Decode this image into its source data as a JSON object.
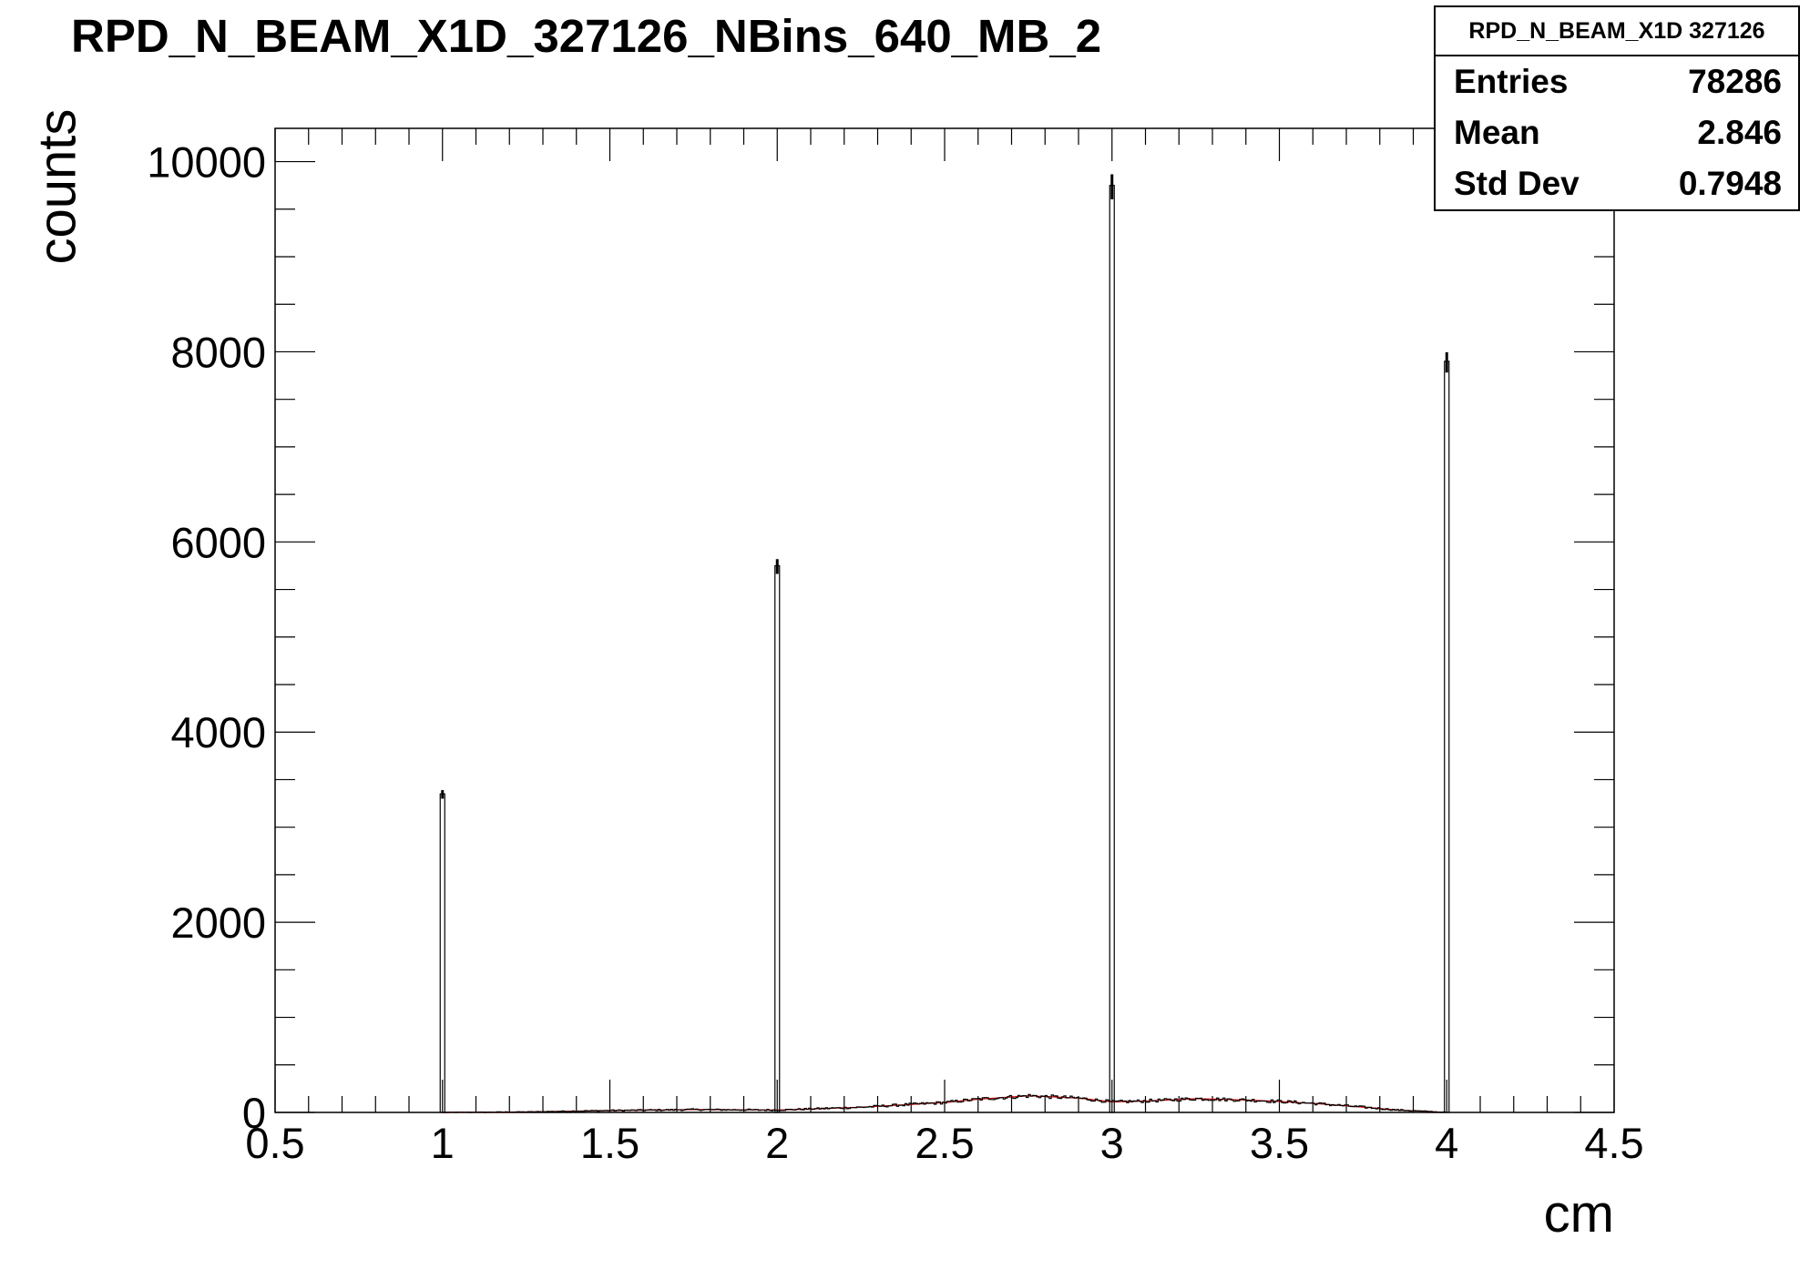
{
  "title": "RPD_N_BEAM_X1D_327126_NBins_640_MB_2",
  "stats": {
    "title": "RPD_N_BEAM_X1D 327126",
    "rows": [
      {
        "label": "Entries",
        "value": "78286"
      },
      {
        "label": "Mean",
        "value": "2.846"
      },
      {
        "label": "Std Dev",
        "value": "0.7948"
      }
    ]
  },
  "chart_data": {
    "type": "histogram",
    "title": "RPD_N_BEAM_X1D_327126_NBins_640_MB_2",
    "xlabel": "cm",
    "ylabel": "counts",
    "xlim": [
      0.5,
      4.5
    ],
    "ylim": [
      0,
      10350
    ],
    "x_ticks": [
      0.5,
      1,
      1.5,
      2,
      2.5,
      3,
      3.5,
      4,
      4.5
    ],
    "x_tick_labels": [
      "0.5",
      "1",
      "1.5",
      "2",
      "2.5",
      "3",
      "3.5",
      "4",
      "4.5"
    ],
    "y_ticks": [
      0,
      2000,
      4000,
      6000,
      8000,
      10000
    ],
    "y_tick_labels": [
      "0",
      "2000",
      "4000",
      "6000",
      "8000",
      "10000"
    ],
    "grid": false,
    "spikes": [
      {
        "x": 1.0,
        "y": 3350
      },
      {
        "x": 2.0,
        "y": 5750
      },
      {
        "x": 3.0,
        "y": 9750
      },
      {
        "x": 4.0,
        "y": 7900
      }
    ],
    "background": {
      "x": [
        1.0,
        1.25,
        1.5,
        1.75,
        2.0,
        2.25,
        2.5,
        2.6,
        2.75,
        2.9,
        3.0,
        3.1,
        3.25,
        3.4,
        3.5,
        3.6,
        3.75,
        3.85,
        4.0
      ],
      "y": [
        0,
        5,
        20,
        30,
        25,
        55,
        105,
        140,
        175,
        150,
        110,
        120,
        145,
        130,
        115,
        95,
        55,
        25,
        0
      ]
    },
    "colors": {
      "line": "#000000",
      "fit": "#cc0000"
    }
  }
}
